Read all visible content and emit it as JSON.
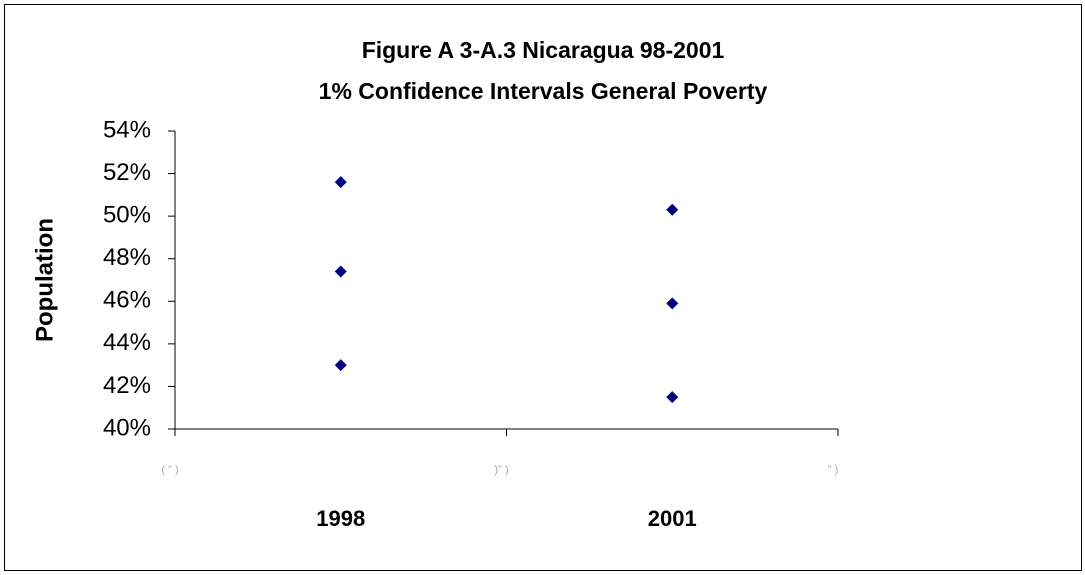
{
  "chart_data": {
    "type": "scatter",
    "title": "Figure A 3-A.3 Nicaragua  98-2001",
    "subtitle": "1% Confidence Intervals  General Poverty",
    "ylabel": "Population",
    "categories": [
      "1998",
      "2001"
    ],
    "series": [
      {
        "color": "#000080",
        "values": [
          43.0,
          41.5
        ]
      },
      {
        "color": "#000080",
        "values": [
          47.4,
          45.9
        ]
      },
      {
        "color": "#000080",
        "values": [
          51.6,
          50.3
        ]
      }
    ],
    "xlim": [
      0,
      2
    ],
    "xticks": [
      {
        "value": 0,
        "label": "( \" )"
      },
      {
        "value": 1,
        "label": ")\" )"
      },
      {
        "value": 2,
        "label": "\" )"
      }
    ],
    "ylim": [
      40,
      54
    ],
    "yticks": [
      {
        "value": 40,
        "label": "40%"
      },
      {
        "value": 42,
        "label": "42%"
      },
      {
        "value": 44,
        "label": "44%"
      },
      {
        "value": 46,
        "label": "46%"
      },
      {
        "value": 48,
        "label": "48%"
      },
      {
        "value": 50,
        "label": "50%"
      },
      {
        "value": 52,
        "label": "52%"
      },
      {
        "value": 54,
        "label": "54%"
      }
    ],
    "grid": false
  }
}
